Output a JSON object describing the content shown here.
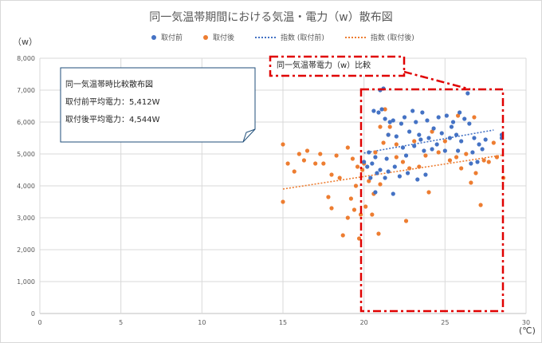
{
  "chart_data": {
    "type": "scatter",
    "title": "同一気温帯期間における気温・電力（w）散布図",
    "ylabel": "（w）",
    "xlabel": "(℃)",
    "xlim": [
      0,
      30
    ],
    "ylim": [
      0,
      8000
    ],
    "xticks": [
      "0",
      "5",
      "10",
      "15",
      "20",
      "25",
      "30"
    ],
    "yticks": [
      "0",
      "1,000",
      "2,000",
      "3,000",
      "4,000",
      "5,000",
      "6,000",
      "7,000",
      "8,000"
    ],
    "legend_position": "top",
    "grid": true,
    "legend": {
      "before": "取付前",
      "after": "取付後",
      "trend_before": "指数 (取付前)",
      "trend_after": "指数 (取付後)"
    },
    "series": [
      {
        "name": "取付前",
        "color": "#4472c4",
        "points": [
          [
            20.6,
            6350
          ],
          [
            20.9,
            6300
          ],
          [
            21.1,
            6400
          ],
          [
            21.3,
            6100
          ],
          [
            21.6,
            6000
          ],
          [
            21.8,
            6050
          ],
          [
            22.3,
            5950
          ],
          [
            22.5,
            6150
          ],
          [
            23.0,
            6350
          ],
          [
            23.2,
            6000
          ],
          [
            23.6,
            6300
          ],
          [
            23.9,
            6050
          ],
          [
            24.3,
            5800
          ],
          [
            24.6,
            6150
          ],
          [
            25.1,
            6200
          ],
          [
            25.5,
            6000
          ],
          [
            25.9,
            6300
          ],
          [
            26.2,
            6100
          ],
          [
            26.5,
            5950
          ],
          [
            21.0,
            7000
          ],
          [
            21.2,
            7050
          ],
          [
            26.4,
            6900
          ],
          [
            21.5,
            5600
          ],
          [
            22.0,
            5550
          ],
          [
            22.8,
            5700
          ],
          [
            23.4,
            5600
          ],
          [
            24.0,
            5500
          ],
          [
            24.8,
            5650
          ],
          [
            25.3,
            5500
          ],
          [
            25.7,
            5600
          ],
          [
            26.0,
            5400
          ],
          [
            26.8,
            5500
          ],
          [
            27.1,
            5300
          ],
          [
            27.5,
            5450
          ],
          [
            28.5,
            5600
          ],
          [
            28.5,
            5500
          ],
          [
            22.4,
            5200
          ],
          [
            23.1,
            5250
          ],
          [
            23.7,
            5100
          ],
          [
            24.2,
            5150
          ],
          [
            25.0,
            5100
          ],
          [
            25.8,
            5100
          ],
          [
            26.7,
            5050
          ],
          [
            27.3,
            5150
          ],
          [
            20.3,
            5050
          ],
          [
            20.7,
            4900
          ],
          [
            21.4,
            4850
          ],
          [
            20.2,
            4600
          ],
          [
            20.5,
            4700
          ],
          [
            21.0,
            4500
          ],
          [
            21.5,
            4450
          ],
          [
            21.9,
            4600
          ],
          [
            22.2,
            4300
          ],
          [
            22.7,
            4400
          ],
          [
            23.3,
            4200
          ],
          [
            23.8,
            4350
          ],
          [
            20.0,
            4750
          ],
          [
            20.8,
            4400
          ],
          [
            21.3,
            4250
          ],
          [
            21.8,
            3750
          ],
          [
            20.7,
            3800
          ],
          [
            27.0,
            4750
          ],
          [
            26.6,
            4700
          ],
          [
            22.6,
            4950
          ],
          [
            24.5,
            5300
          ],
          [
            23.5,
            5450
          ],
          [
            25.4,
            5850
          ],
          [
            20.4,
            4250
          ]
        ]
      },
      {
        "name": "取付後",
        "color": "#ed7d31",
        "points": [
          [
            15.0,
            3500
          ],
          [
            15.0,
            5300
          ],
          [
            15.3,
            4700
          ],
          [
            15.7,
            4450
          ],
          [
            16.0,
            5000
          ],
          [
            16.3,
            4800
          ],
          [
            16.5,
            5100
          ],
          [
            17.0,
            4700
          ],
          [
            17.5,
            4700
          ],
          [
            17.8,
            3650
          ],
          [
            18.0,
            3300
          ],
          [
            18.3,
            4950
          ],
          [
            18.5,
            4250
          ],
          [
            18.7,
            2450
          ],
          [
            19.0,
            3000
          ],
          [
            19.2,
            3600
          ],
          [
            19.4,
            3250
          ],
          [
            19.5,
            4000
          ],
          [
            19.6,
            4600
          ],
          [
            19.8,
            3100
          ],
          [
            20.0,
            4700
          ],
          [
            20.1,
            3350
          ],
          [
            19.7,
            2350
          ],
          [
            19.9,
            4500
          ],
          [
            20.3,
            4150
          ],
          [
            20.6,
            3750
          ],
          [
            20.9,
            2500
          ],
          [
            21.0,
            4050
          ],
          [
            20.5,
            3100
          ],
          [
            21.2,
            5350
          ],
          [
            21.5,
            5600
          ],
          [
            21.3,
            6400
          ],
          [
            21.6,
            5850
          ],
          [
            21.0,
            5850
          ],
          [
            22.0,
            4900
          ],
          [
            22.4,
            4750
          ],
          [
            22.6,
            2900
          ],
          [
            22.8,
            4550
          ],
          [
            23.1,
            5400
          ],
          [
            23.4,
            4600
          ],
          [
            23.8,
            4950
          ],
          [
            24.0,
            3800
          ],
          [
            24.2,
            5700
          ],
          [
            24.6,
            5050
          ],
          [
            25.0,
            5400
          ],
          [
            25.3,
            4800
          ],
          [
            25.7,
            4900
          ],
          [
            26.0,
            4550
          ],
          [
            26.3,
            5000
          ],
          [
            26.6,
            4100
          ],
          [
            26.9,
            4400
          ],
          [
            27.2,
            3400
          ],
          [
            27.4,
            4800
          ],
          [
            27.7,
            4750
          ],
          [
            28.0,
            5350
          ],
          [
            28.2,
            4900
          ],
          [
            28.6,
            4250
          ],
          [
            18.0,
            4350
          ],
          [
            17.3,
            5000
          ],
          [
            19.3,
            4850
          ],
          [
            20.7,
            5050
          ],
          [
            26.8,
            6150
          ],
          [
            25.8,
            6200
          ],
          [
            22.0,
            5300
          ],
          [
            19.0,
            5200
          ]
        ]
      }
    ],
    "trendlines": [
      {
        "name": "指数 (取付前)",
        "color": "#4472c4",
        "x": [
          20.0,
          28.0
        ],
        "y": [
          5030,
          5750
        ]
      },
      {
        "name": "指数 (取付後)",
        "color": "#ed7d31",
        "x": [
          15.0,
          28.5
        ],
        "y": [
          3900,
          4960
        ]
      }
    ]
  },
  "annotations": {
    "note_lines": [
      "同一気温帯時比較散布図",
      "取付前平均電力：5,412W",
      "取付後平均電力：4,544W"
    ],
    "callout": "同一気温帯電力（w）比較",
    "highlight_color": "#e00000"
  }
}
